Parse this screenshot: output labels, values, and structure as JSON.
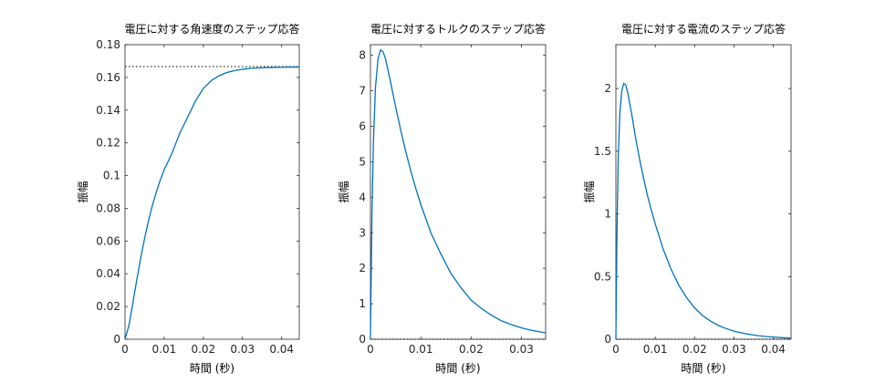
{
  "colors": {
    "line": "#0072BD",
    "reference": "#000000",
    "axis": "#262626"
  },
  "chart_data": [
    {
      "type": "line",
      "title": "電圧に対する角速度のステップ応答",
      "xlabel": "時間 (秒)",
      "ylabel": "振幅",
      "xlim": [
        0,
        0.0445
      ],
      "ylim": [
        0,
        0.18
      ],
      "xticks": [
        0,
        0.01,
        0.02,
        0.03,
        0.04
      ],
      "xtick_labels": [
        "0",
        "0.01",
        "0.02",
        "0.03",
        "0.04"
      ],
      "yticks": [
        0,
        0.02,
        0.04,
        0.06,
        0.08,
        0.1,
        0.12,
        0.14,
        0.16,
        0.18
      ],
      "ytick_labels": [
        "0",
        "0.02",
        "0.04",
        "0.06",
        "0.08",
        "0.1",
        "0.12",
        "0.14",
        "0.16",
        "0.18"
      ],
      "reference_y": 0.1666,
      "grid": false,
      "series": [
        {
          "x": [
            0,
            0.001,
            0.002,
            0.003,
            0.004,
            0.005,
            0.006,
            0.007,
            0.008,
            0.009,
            0.01,
            0.012,
            0.014,
            0.016,
            0.018,
            0.02,
            0.022,
            0.024,
            0.026,
            0.028,
            0.03,
            0.032,
            0.034,
            0.036,
            0.038,
            0.04,
            0.042,
            0.0445
          ],
          "y": [
            0,
            0.0084,
            0.022,
            0.0362,
            0.0495,
            0.0616,
            0.0724,
            0.0818,
            0.09,
            0.0972,
            0.1035,
            0.1137,
            0.126,
            0.1357,
            0.1456,
            0.1532,
            0.158,
            0.161,
            0.163,
            0.1642,
            0.165,
            0.1655,
            0.1658,
            0.166,
            0.1661,
            0.1662,
            0.1663,
            0.1663
          ]
        }
      ]
    },
    {
      "type": "line",
      "title": "電圧に対するトルクのステップ応答",
      "xlabel": "時間 (秒)",
      "ylabel": "振幅",
      "xlim": [
        0,
        0.0348
      ],
      "ylim": [
        0,
        8.3
      ],
      "xticks": [
        0,
        0.01,
        0.02,
        0.03
      ],
      "xtick_labels": [
        "0",
        "0.01",
        "0.02",
        "0.03"
      ],
      "yticks": [
        0,
        1,
        2,
        3,
        4,
        5,
        6,
        7,
        8
      ],
      "ytick_labels": [
        "0",
        "1",
        "2",
        "3",
        "4",
        "5",
        "6",
        "7",
        "8"
      ],
      "reference_y": 0,
      "grid": false,
      "series": [
        {
          "x": [
            0,
            0.0003,
            0.0006,
            0.001,
            0.0015,
            0.002,
            0.0025,
            0.003,
            0.004,
            0.005,
            0.006,
            0.007,
            0.008,
            0.009,
            0.01,
            0.012,
            0.014,
            0.016,
            0.018,
            0.02,
            0.022,
            0.024,
            0.026,
            0.028,
            0.03,
            0.032,
            0.0348
          ],
          "y": [
            0,
            3.5,
            5.6,
            7.1,
            7.9,
            8.15,
            8.1,
            7.9,
            7.25,
            6.55,
            5.9,
            5.3,
            4.75,
            4.25,
            3.8,
            3.0,
            2.4,
            1.85,
            1.45,
            1.1,
            0.87,
            0.68,
            0.52,
            0.41,
            0.32,
            0.25,
            0.18
          ]
        }
      ]
    },
    {
      "type": "line",
      "title": "電圧に対する電流のステップ応答",
      "xlabel": "時間 (秒)",
      "ylabel": "振幅",
      "xlim": [
        0,
        0.0445
      ],
      "ylim": [
        0,
        2.35
      ],
      "xticks": [
        0,
        0.01,
        0.02,
        0.03,
        0.04
      ],
      "xtick_labels": [
        "0",
        "0.01",
        "0.02",
        "0.03",
        "0.04"
      ],
      "yticks": [
        0,
        0.5,
        1,
        1.5,
        2
      ],
      "ytick_labels": [
        "0",
        "0.5",
        "1",
        "1.5",
        "2"
      ],
      "reference_y": 0,
      "grid": false,
      "series": [
        {
          "x": [
            0,
            0.0003,
            0.0006,
            0.001,
            0.0015,
            0.002,
            0.0025,
            0.003,
            0.004,
            0.005,
            0.006,
            0.007,
            0.008,
            0.009,
            0.01,
            0.012,
            0.014,
            0.016,
            0.018,
            0.02,
            0.022,
            0.024,
            0.026,
            0.028,
            0.03,
            0.032,
            0.034,
            0.036,
            0.038,
            0.04,
            0.042,
            0.0445
          ],
          "y": [
            0,
            0.9,
            1.45,
            1.8,
            1.98,
            2.04,
            2.03,
            1.97,
            1.8,
            1.61,
            1.44,
            1.29,
            1.15,
            1.03,
            0.92,
            0.72,
            0.56,
            0.43,
            0.33,
            0.25,
            0.19,
            0.145,
            0.11,
            0.085,
            0.065,
            0.05,
            0.038,
            0.029,
            0.022,
            0.017,
            0.013,
            0.009
          ]
        }
      ]
    }
  ]
}
